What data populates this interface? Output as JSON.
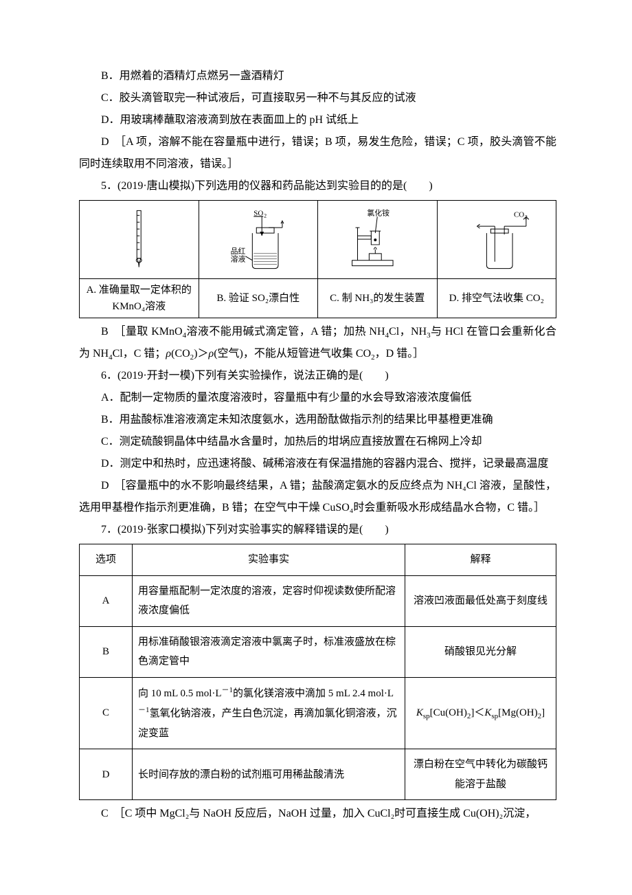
{
  "q4": {
    "B": "B．用燃着的酒精灯点燃另一盏酒精灯",
    "C": "C．胶头滴管取完一种试液后，可直接取另一种不与其反应的试液",
    "D": "D．用玻璃棒蘸取溶液滴到放在表面皿上的 pH 试纸上",
    "ans_letter": "D",
    "ans_text": "［A 项，溶解不能在容量瓶中进行，错误；B 项，易发生危险，错误；C 项，胶头滴管不能同时连续取用不同溶液，错误。］"
  },
  "q5": {
    "stem": "5．(2019·唐山模拟)下列选用的仪器和药品能达到实验目的的是(　　)",
    "cells": {
      "a_label": "A. 准确量取一定体积的 KMnO₄溶液",
      "b_label": "B. 验证 SO₂漂白性",
      "c_label": "C. 制 NH₃的发生装置",
      "d_label": "D. 排空气法收集 CO₂"
    },
    "fig_labels": {
      "so2": "SO₂",
      "pinhong": "品红",
      "rongye": "溶液",
      "nh4cl": "氯化铵",
      "co2": "CO₂"
    },
    "ans_letter": "B",
    "ans_text": "［量取 KMnO₄溶液不能用碱式滴定管，A 错；加热 NH₄Cl，NH₃与 HCl 在管口会重新化合为 NH₄Cl，C 错；ρ(CO₂)＞ρ(空气)，不能从短管进气收集 CO₂，D 错。］"
  },
  "q6": {
    "stem": "6．(2019·开封一模)下列有关实验操作，说法正确的是(　　)",
    "A": "A．配制一定物质的量浓度溶液时，容量瓶中有少量的水会导致溶液浓度偏低",
    "B": "B．用盐酸标准溶液滴定未知浓度氨水，选用酚酞做指示剂的结果比甲基橙更准确",
    "C": "C．测定硫酸铜晶体中结晶水含量时，加热后的坩埚应直接放置在石棉网上冷却",
    "D": "D．测定中和热时，应迅速将酸、碱稀溶液在有保温措施的容器内混合、搅拌，记录最高温度",
    "ans_letter": "D",
    "ans_text": "［容量瓶中的水不影响最终结果，A 错；盐酸滴定氨水的反应终点为 NH₄Cl 溶液，呈酸性，选用甲基橙作指示剂更准确，B 错；在空气中干燥 CuSO₄时会重新吸水形成结晶水合物，C 错。］"
  },
  "q7": {
    "stem": "7．(2019·张家口模拟)下列对实验事实的解释错误的是(　　)",
    "headers": {
      "opt": "选项",
      "fact": "实验事实",
      "exp": "解释"
    },
    "rows": {
      "A": {
        "fact": "用容量瓶配制一定浓度的溶液，定容时仰视读数使所配溶液浓度偏低",
        "exp": "溶液凹液面最低处高于刻度线"
      },
      "B": {
        "fact": "用标准硝酸银溶液滴定溶液中氯离子时，标准液盛放在棕色滴定管中",
        "exp": "硝酸银见光分解"
      },
      "C": {
        "fact_html": "向 10 mL 0.5 mol·L⁻¹的氯化镁溶液中滴加 5 mL 2.4 mol·L⁻¹氢氧化钠溶液，产生白色沉淀，再滴加氯化铜溶液，沉淀变蓝",
        "exp_html": "Kₛₚ[Cu(OH)₂]＜Kₛₚ[Mg(OH)₂]"
      },
      "D": {
        "fact": "长时间存放的漂白粉的试剂瓶可用稀盐酸清洗",
        "exp": "漂白粉在空气中转化为碳酸钙能溶于盐酸"
      }
    },
    "ans_letter": "C",
    "ans_text": "［C 项中 MgCl₂与 NaOH 反应后，NaOH 过量，加入 CuCl₂时可直接生成 Cu(OH)₂沉淀，"
  },
  "labels": {
    "A": "A",
    "B": "B",
    "C": "C",
    "D": "D"
  }
}
